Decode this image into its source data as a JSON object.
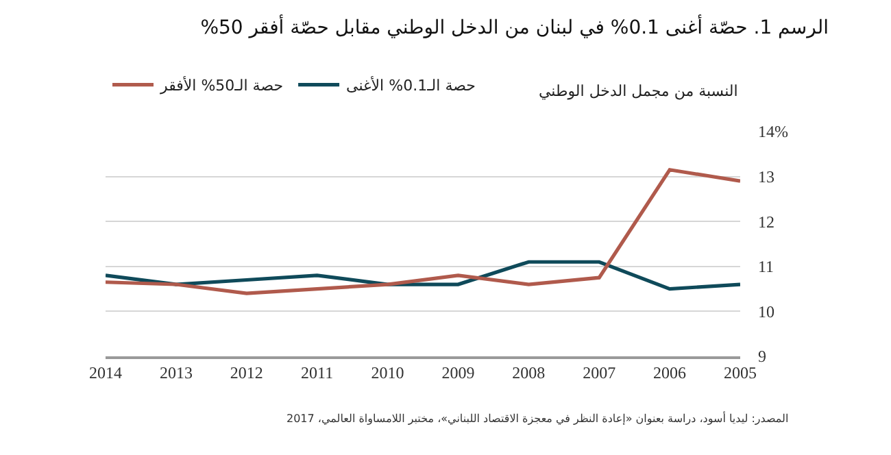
{
  "chart_data": {
    "type": "line",
    "title": "الرسم 1. حصّة أغنى 0.1% في لبنان من الدخل الوطني مقابل حصّة أفقر 50%",
    "ylabel": "النسبة من مجمل الدخل الوطني",
    "categories": [
      "2014",
      "2013",
      "2012",
      "2011",
      "2010",
      "2009",
      "2008",
      "2007",
      "2006",
      "2005"
    ],
    "series": [
      {
        "name": "حصة الـ0.1% الأغنى",
        "color": "#0f4a5a",
        "values": [
          10.8,
          10.6,
          10.7,
          10.8,
          10.6,
          10.6,
          11.1,
          11.1,
          10.5,
          10.6
        ]
      },
      {
        "name": "حصة الـ50% الأفقر",
        "color": "#b05a4c",
        "values": [
          10.65,
          10.6,
          10.4,
          10.5,
          10.6,
          10.8,
          10.6,
          10.75,
          13.15,
          12.9
        ]
      }
    ],
    "ylim": [
      9,
      14
    ],
    "yticks": [
      9,
      10,
      11,
      12,
      13,
      {
        "value": 14,
        "label": "14%"
      }
    ],
    "grid": "y",
    "legend": "top left",
    "marker": "none",
    "line_style": "solid",
    "annotations": [
      "المصدر: ليديا أسود، دراسة بعنوان «إعادة النظر في معجزة الاقتصاد اللبناني»، مختبر اللامساواة العالمي، 2017"
    ]
  }
}
